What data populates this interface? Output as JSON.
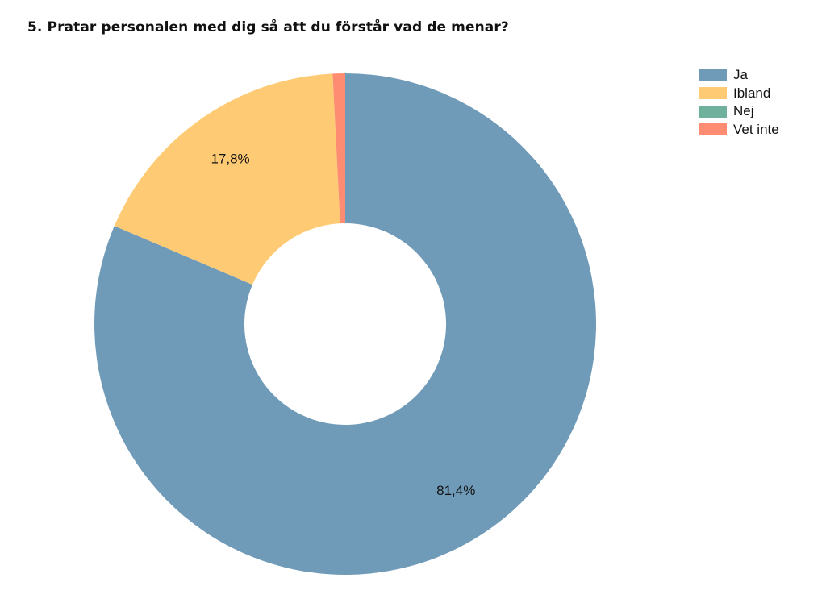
{
  "chart_data": {
    "type": "pie",
    "variant": "donut",
    "title": "5. Pratar personalen med dig så att du förstår vad de menar?",
    "categories": [
      "Ja",
      "Ibland",
      "Nej",
      "Vet inte"
    ],
    "values": [
      81.4,
      17.8,
      0.0,
      0.8
    ],
    "value_labels": [
      "81,4%",
      "17,8%",
      "",
      ""
    ],
    "colors": [
      "#6f9ab8",
      "#fecb74",
      "#6fb19c",
      "#fd8c73"
    ],
    "legend_position": "top-right"
  }
}
